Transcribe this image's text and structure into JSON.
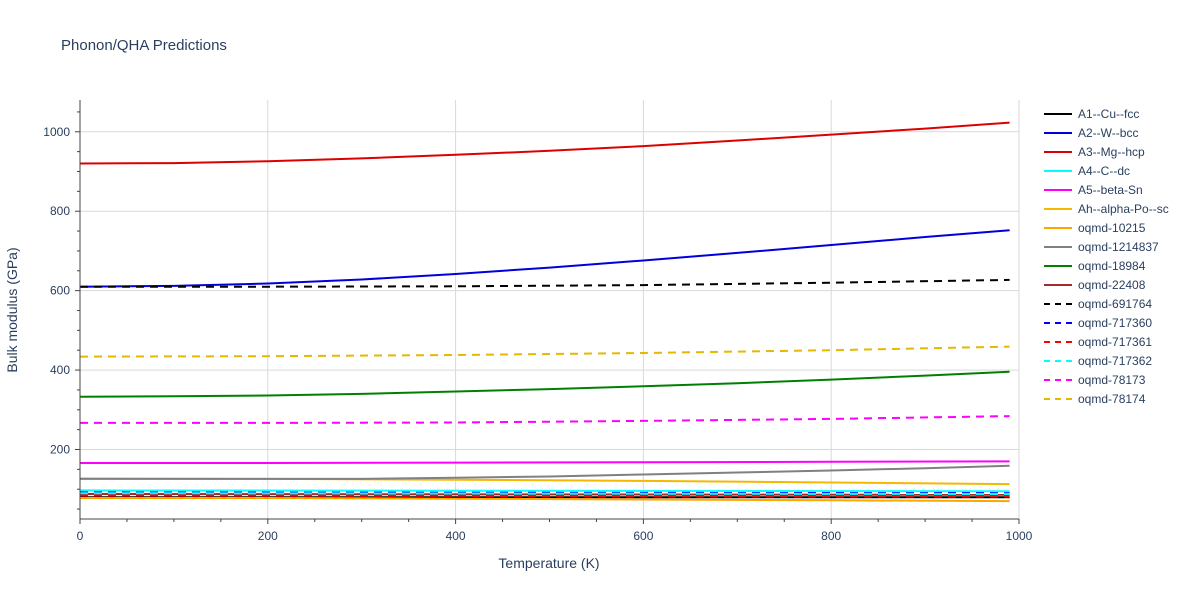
{
  "chart_data": {
    "type": "line",
    "title": "Phonon/QHA Predictions",
    "xlabel": "Temperature (K)",
    "ylabel": "Bulk modulus (GPa)",
    "xlim": [
      0,
      1000
    ],
    "ylim": [
      25,
      1080
    ],
    "xticks": [
      0,
      200,
      400,
      600,
      800,
      1000
    ],
    "yticks": [
      200,
      400,
      600,
      800,
      1000
    ],
    "grid": true,
    "legend_position": "right",
    "series": [
      {
        "name": "A1--Cu--fcc",
        "color": "#000000",
        "dash": "solid",
        "x": [
          0,
          990
        ],
        "y": [
          80,
          80
        ]
      },
      {
        "name": "A2--W--bcc",
        "color": "#0000dd",
        "dash": "solid",
        "x": [
          0,
          100,
          200,
          300,
          400,
          500,
          600,
          700,
          800,
          900,
          990
        ],
        "y": [
          610,
          612,
          618,
          628,
          642,
          658,
          676,
          695,
          715,
          735,
          752
        ]
      },
      {
        "name": "A3--Mg--hcp",
        "color": "#dd0000",
        "dash": "solid",
        "x": [
          0,
          100,
          200,
          300,
          400,
          500,
          600,
          700,
          800,
          900,
          990
        ],
        "y": [
          920,
          921,
          926,
          933,
          942,
          952,
          964,
          978,
          993,
          1008,
          1023
        ]
      },
      {
        "name": "A4--C--dc",
        "color": "#00ffff",
        "dash": "solid",
        "x": [
          0,
          990
        ],
        "y": [
          97,
          95
        ]
      },
      {
        "name": "A5--beta-Sn",
        "color": "#ff00ff",
        "dash": "solid",
        "x": [
          0,
          200,
          400,
          600,
          800,
          990
        ],
        "y": [
          166,
          166,
          167,
          168,
          169,
          170
        ]
      },
      {
        "name": "Ah--alpha-Po--sc",
        "color": "#f5b800",
        "dash": "solid",
        "x": [
          0,
          200,
          400,
          600,
          800,
          990
        ],
        "y": [
          127,
          126,
          124,
          121,
          117,
          113
        ]
      },
      {
        "name": "oqmd-10215",
        "color": "#ffa500",
        "dash": "solid",
        "x": [
          0,
          200,
          400,
          600,
          800,
          990
        ],
        "y": [
          78,
          78,
          76,
          74,
          72,
          70
        ]
      },
      {
        "name": "oqmd-1214837",
        "color": "#808080",
        "dash": "solid",
        "x": [
          0,
          200,
          300,
          400,
          500,
          600,
          700,
          800,
          900,
          990
        ],
        "y": [
          126,
          126,
          126,
          129,
          132,
          137,
          142,
          147,
          153,
          159
        ]
      },
      {
        "name": "oqmd-18984",
        "color": "#008000",
        "dash": "solid",
        "x": [
          0,
          100,
          200,
          300,
          400,
          500,
          600,
          700,
          800,
          900,
          990
        ],
        "y": [
          333,
          334,
          336,
          340,
          346,
          352,
          359,
          367,
          376,
          386,
          396
        ]
      },
      {
        "name": "oqmd-22408",
        "color": "#a52a2a",
        "dash": "solid",
        "x": [
          0,
          990
        ],
        "y": [
          88,
          86
        ]
      },
      {
        "name": "oqmd-691764",
        "color": "#000000",
        "dash": "dash",
        "x": [
          0,
          200,
          400,
          600,
          800,
          990
        ],
        "y": [
          610,
          610,
          611,
          614,
          620,
          627
        ]
      },
      {
        "name": "oqmd-717360",
        "color": "#0000ff",
        "dash": "dash",
        "x": [
          0,
          990
        ],
        "y": [
          92,
          90
        ]
      },
      {
        "name": "oqmd-717361",
        "color": "#ff0000",
        "dash": "dash",
        "x": [
          0,
          990
        ],
        "y": [
          84,
          82
        ]
      },
      {
        "name": "oqmd-717362",
        "color": "#00ffff",
        "dash": "dash",
        "x": [
          0,
          990
        ],
        "y": [
          90,
          88
        ]
      },
      {
        "name": "oqmd-78173",
        "color": "#ff00ff",
        "dash": "dash",
        "x": [
          0,
          200,
          400,
          600,
          800,
          990
        ],
        "y": [
          267,
          267,
          268,
          272,
          277,
          284
        ]
      },
      {
        "name": "oqmd-78174",
        "color": "#e6b800",
        "dash": "dash",
        "x": [
          0,
          200,
          400,
          600,
          800,
          990
        ],
        "y": [
          434,
          435,
          438,
          443,
          450,
          459
        ]
      }
    ]
  }
}
